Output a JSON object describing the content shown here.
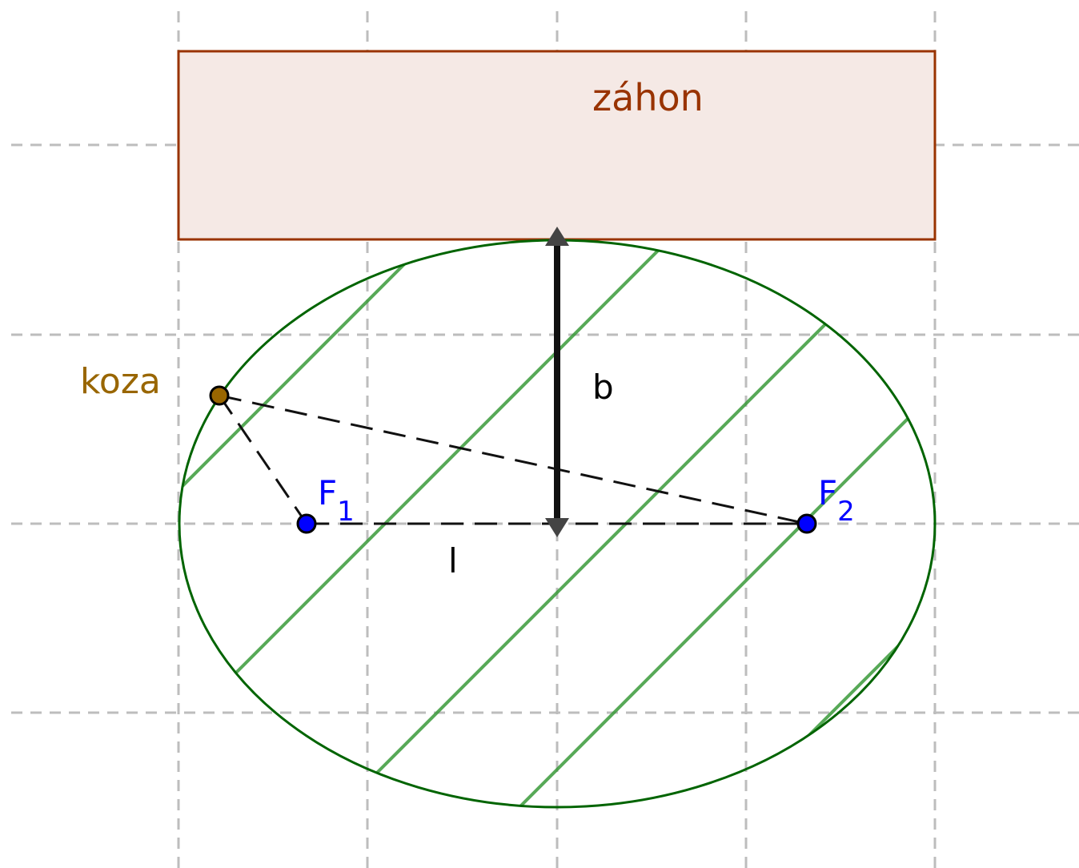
{
  "labels": {
    "bed": "záhon",
    "goat": "koza",
    "focus1": "F",
    "focus1_sub": "1",
    "focus2": "F",
    "focus2_sub": "2",
    "semi_minor": "b",
    "segment": "l"
  },
  "colors": {
    "grid": "#bdbdbd",
    "bed_stroke": "#993300",
    "bed_fill": "#f5e9e5",
    "bed_text": "#993300",
    "ellipse": "#006400",
    "hatch": "#3a9a3a",
    "goat": "#996600",
    "focus": "#0000ff",
    "arrow": "#111111",
    "arrow_head": "#444444",
    "dashed": "#111111"
  }
}
